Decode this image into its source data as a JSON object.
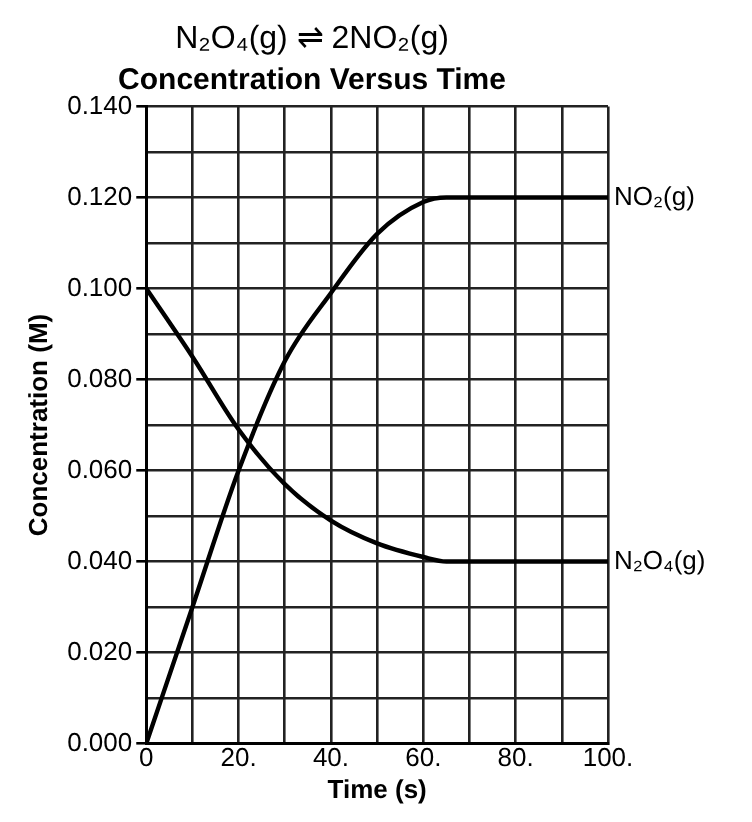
{
  "chart_data": {
    "type": "line",
    "title": "N₂O₄(g) ⇌ 2NO₂(g)",
    "subtitle": "Concentration Versus Time",
    "xlabel": "Time (s)",
    "ylabel": "Concentration (M)",
    "series": [
      {
        "name": "NO₂(g)",
        "color": "#000000",
        "x": [
          0,
          10,
          20,
          30,
          40,
          50,
          60,
          65,
          70,
          100
        ],
        "values": [
          0,
          0.03,
          0.06,
          0.084,
          0.099,
          0.112,
          0.119,
          0.12,
          0.12,
          0.12
        ]
      },
      {
        "name": "N₂O₄(g)",
        "color": "#000000",
        "x": [
          0,
          10,
          20,
          30,
          40,
          50,
          60,
          65,
          70,
          100
        ],
        "values": [
          0.1,
          0.085,
          0.069,
          0.057,
          0.049,
          0.044,
          0.041,
          0.04,
          0.04,
          0.04
        ]
      }
    ],
    "xlim": [
      0,
      100
    ],
    "ylim": [
      0,
      0.14
    ],
    "xticks": [
      0,
      {
        "value": 10,
        "label": null
      },
      {
        "value": 20,
        "label": "20."
      },
      {
        "value": 30,
        "label": null
      },
      {
        "value": 40,
        "label": "40."
      },
      {
        "value": 50,
        "label": null
      },
      {
        "value": 60,
        "label": "60."
      },
      {
        "value": 70,
        "label": null
      },
      {
        "value": 80,
        "label": "80."
      },
      {
        "value": 90,
        "label": null
      },
      {
        "value": 100,
        "label": "100."
      }
    ],
    "yticks": [
      {
        "value": 0,
        "label": "0.000"
      },
      {
        "value": 0.01,
        "label": null
      },
      {
        "value": 0.02,
        "label": "0.020"
      },
      {
        "value": 0.03,
        "label": null
      },
      {
        "value": 0.04,
        "label": "0.040"
      },
      {
        "value": 0.05,
        "label": null
      },
      {
        "value": 0.06,
        "label": "0.060"
      },
      {
        "value": 0.07,
        "label": null
      },
      {
        "value": 0.08,
        "label": "0.080"
      },
      {
        "value": 0.09,
        "label": null
      },
      {
        "value": 0.1,
        "label": "0.100"
      },
      {
        "value": 0.11,
        "label": null
      },
      {
        "value": 0.12,
        "label": "0.120"
      },
      {
        "value": 0.13,
        "label": null
      },
      {
        "value": 0.14,
        "label": "0.140"
      }
    ],
    "grid": true,
    "legend": false,
    "marker": "none",
    "line_style": "solid"
  }
}
